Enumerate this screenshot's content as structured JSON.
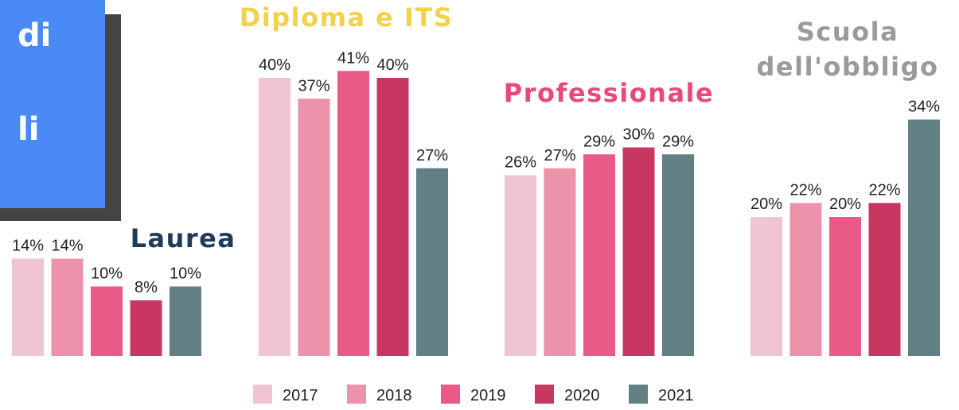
{
  "sidebar": {
    "lines": [
      "di",
      "li"
    ]
  },
  "chart_data": {
    "type": "bar",
    "categories": [
      "Laurea",
      "Diploma e ITS",
      "Professionale",
      "Scuola dell'obbligo"
    ],
    "category_colors": [
      "#1f3b5c",
      "#f2d14b",
      "#e8497a",
      "#9a9a9a"
    ],
    "series": [
      {
        "name": "2017",
        "color": "#f0c4d0",
        "values": [
          14,
          40,
          26,
          20
        ],
        "value_labels": [
          "14%",
          "40%",
          "26%",
          "20%"
        ]
      },
      {
        "name": "2018",
        "color": "#ec93ab",
        "values": [
          14,
          37,
          27,
          22
        ],
        "value_labels": [
          "14%",
          "37%",
          "27%",
          "22%"
        ]
      },
      {
        "name": "2019",
        "color": "#ea5a86",
        "values": [
          10,
          41,
          29,
          20
        ],
        "value_labels": [
          "10%",
          "41%",
          "29%",
          "20%"
        ]
      },
      {
        "name": "2020",
        "color": "#c73762",
        "values": [
          8,
          40,
          30,
          22
        ],
        "value_labels": [
          "8%",
          "40%",
          "30%",
          "22%"
        ]
      },
      {
        "name": "2021",
        "color": "#617f85",
        "values": [
          10,
          27,
          29,
          34
        ],
        "value_labels": [
          "10%",
          "27%",
          "29%",
          "34%"
        ]
      }
    ]
  }
}
